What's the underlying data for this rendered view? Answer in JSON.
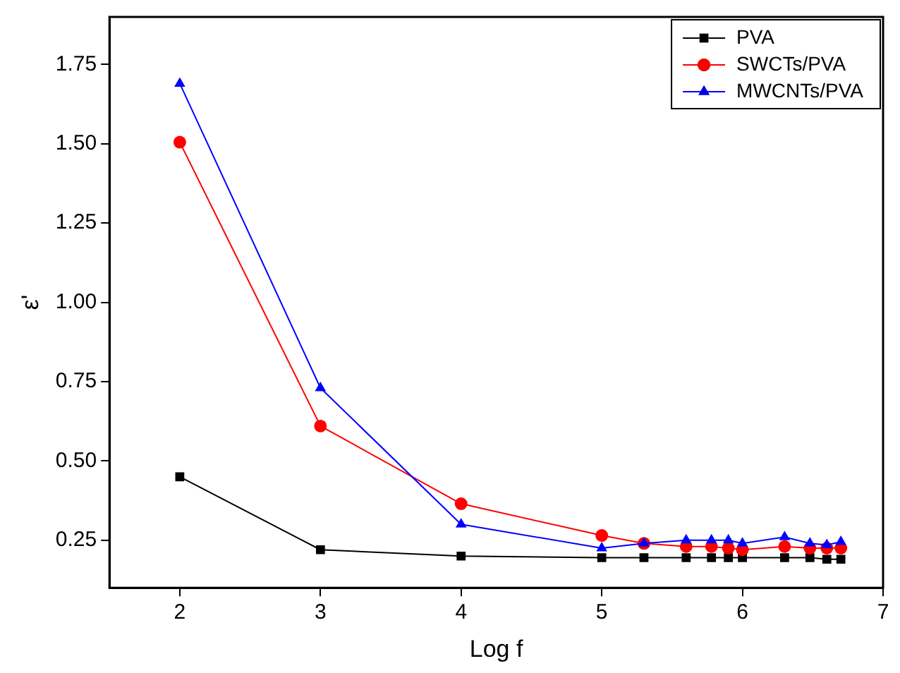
{
  "chart_data": {
    "type": "line",
    "xlabel": "Log f",
    "ylabel": "ε'",
    "xlim": [
      1.5,
      7
    ],
    "xticks": [
      2,
      3,
      4,
      5,
      6,
      7
    ],
    "ylim": [
      0.1,
      1.9
    ],
    "yticks": [
      {
        "value": 0.25,
        "label": "0.25"
      },
      {
        "value": 0.5,
        "label": "0.50"
      },
      {
        "value": 0.75,
        "label": "0.75"
      },
      {
        "value": 1,
        "label": "1.00"
      },
      {
        "value": 1.25,
        "label": "1.25"
      },
      {
        "value": 1.5,
        "label": "1.50"
      },
      {
        "value": 1.75,
        "label": "1.75"
      }
    ],
    "grid": false,
    "legend": "top right",
    "line_style": "solid",
    "x": [
      2,
      3,
      4,
      5,
      5.3,
      5.6,
      5.78,
      5.9,
      6,
      6.3,
      6.48,
      6.6,
      6.7
    ],
    "series": [
      {
        "name": "PVA",
        "color": "#000000",
        "marker": "square",
        "values": [
          0.45,
          0.22,
          0.2,
          0.195,
          0.195,
          0.195,
          0.195,
          0.195,
          0.195,
          0.195,
          0.195,
          0.19,
          0.19
        ]
      },
      {
        "name": "SWCTs/PVA",
        "color": "#ff0000",
        "marker": "circle",
        "values": [
          1.505,
          0.61,
          0.365,
          0.265,
          0.24,
          0.23,
          0.23,
          0.225,
          0.22,
          0.23,
          0.225,
          0.225,
          0.225
        ]
      },
      {
        "name": "MWCNTs/PVA",
        "color": "#0000ff",
        "marker": "triangle",
        "values": [
          1.69,
          0.73,
          0.3,
          0.225,
          0.24,
          0.25,
          0.25,
          0.25,
          0.24,
          0.26,
          0.24,
          0.235,
          0.245
        ]
      }
    ]
  }
}
